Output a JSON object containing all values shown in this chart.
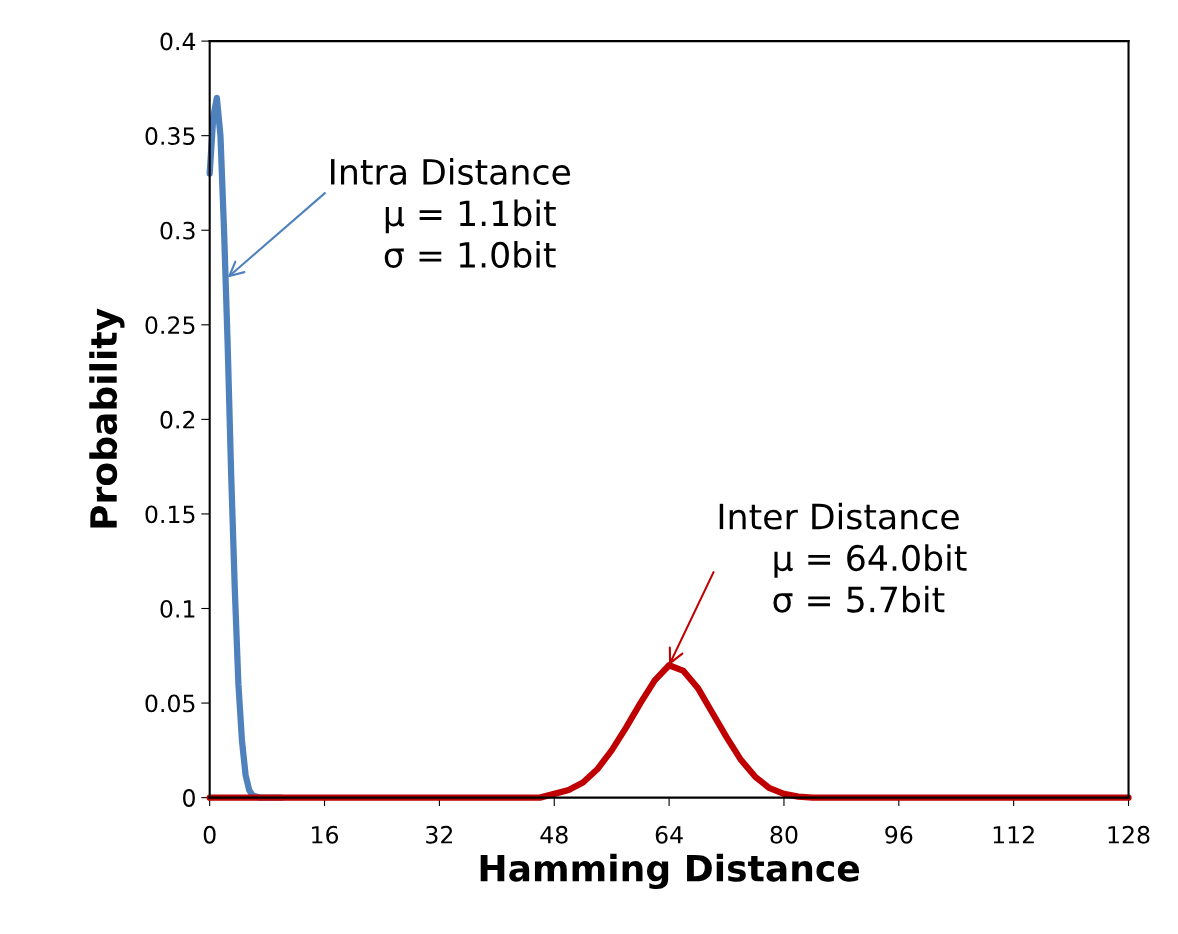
{
  "chart_data": {
    "type": "line",
    "xlabel": "Hamming Distance",
    "ylabel": "Probability",
    "xlim": [
      0,
      128
    ],
    "xticks": [
      0,
      16,
      32,
      48,
      64,
      80,
      96,
      112,
      128
    ],
    "ylim": [
      0,
      0.4
    ],
    "yticks": [
      0,
      0.05,
      0.1,
      0.15,
      0.2,
      0.25,
      0.3,
      0.35,
      0.4
    ],
    "grid": false,
    "legend": false,
    "marker": "none",
    "line_style": "solid",
    "series": [
      {
        "color": "#4f81bd",
        "x": [
          0,
          0.5,
          1,
          1.5,
          2,
          2.5,
          3,
          3.5,
          4,
          4.5,
          5,
          5.5,
          6,
          7,
          10
        ],
        "values": [
          0.33,
          0.36,
          0.37,
          0.35,
          0.3,
          0.24,
          0.17,
          0.11,
          0.06,
          0.03,
          0.012,
          0.004,
          0.001,
          0,
          0
        ]
      },
      {
        "color": "#c00000",
        "x": [
          0,
          46,
          48,
          50,
          52,
          54,
          56,
          58,
          60,
          62,
          64,
          66,
          68,
          70,
          72,
          74,
          76,
          78,
          80,
          82,
          84,
          128
        ],
        "values": [
          0,
          0,
          0.002,
          0.004,
          0.008,
          0.015,
          0.025,
          0.037,
          0.05,
          0.062,
          0.07,
          0.067,
          0.058,
          0.045,
          0.032,
          0.02,
          0.011,
          0.005,
          0.002,
          0.0005,
          0,
          0
        ]
      }
    ],
    "annotations": [
      {
        "text": "Intra Distance\n     μ = 1.1bit\n     σ = 1.0bit",
        "x": 2.5,
        "y": 0.275
      },
      {
        "text": "Inter Distance\n     μ = 64.0bit\n     σ = 5.7bit",
        "x": 64,
        "y": 0.07
      }
    ]
  }
}
